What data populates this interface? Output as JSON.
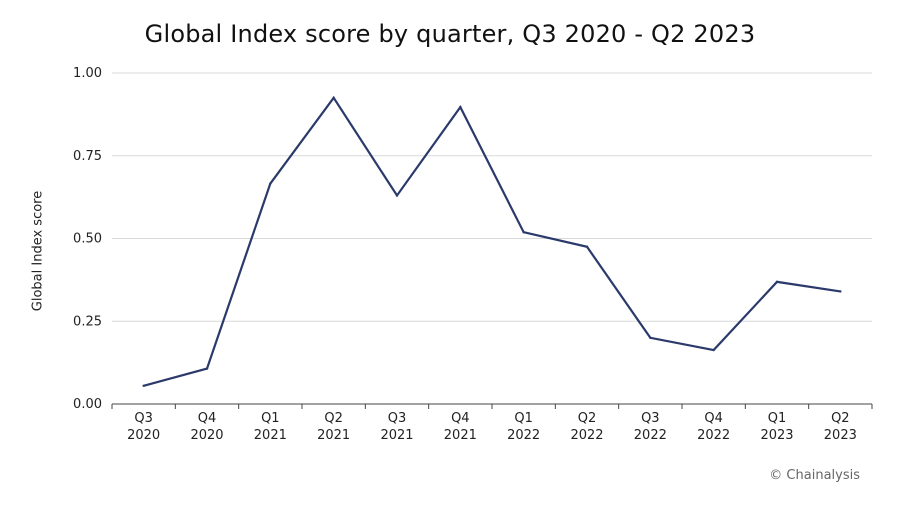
{
  "chart_data": {
    "type": "line",
    "title": "Global Index score by quarter, Q3 2020 - Q2 2023",
    "xlabel": "",
    "ylabel": "Global Index score",
    "categories": [
      [
        "Q3",
        "2020"
      ],
      [
        "Q4",
        "2020"
      ],
      [
        "Q1",
        "2021"
      ],
      [
        "Q2",
        "2021"
      ],
      [
        "Q3",
        "2021"
      ],
      [
        "Q4",
        "2021"
      ],
      [
        "Q1",
        "2022"
      ],
      [
        "Q2",
        "2022"
      ],
      [
        "Q3",
        "2022"
      ],
      [
        "Q4",
        "2022"
      ],
      [
        "Q1",
        "2023"
      ],
      [
        "Q2",
        "2023"
      ]
    ],
    "series": [
      {
        "values": [
          0.055,
          0.107,
          0.666,
          0.925,
          0.63,
          0.897,
          0.519,
          0.475,
          0.2,
          0.163,
          0.369,
          0.34
        ]
      }
    ],
    "yticks": [
      "0.00",
      "0.25",
      "0.50",
      "0.75",
      "1.00"
    ],
    "ylim": [
      0,
      1.0
    ],
    "grid": true,
    "line_color": "#2b3a6b",
    "grid_color": "#d9d9d9"
  },
  "credit": "© Chainalysis"
}
